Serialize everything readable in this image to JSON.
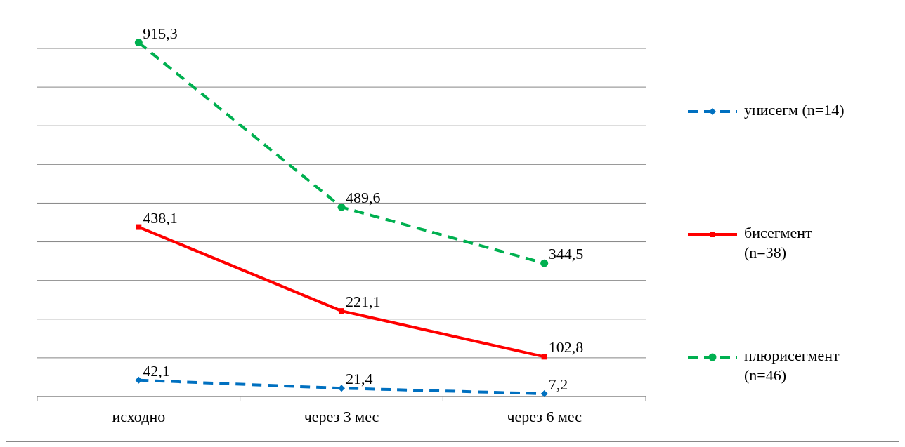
{
  "chart_data": {
    "type": "line",
    "categories": [
      "исходно",
      "через 3 мес",
      "через 6 мес"
    ],
    "series": [
      {
        "name": "унисегм (n=14)",
        "color": "#0070c0",
        "values": [
          42.1,
          21.4,
          7.2
        ],
        "value_labels": [
          "42,1",
          "21,4",
          "7,2"
        ],
        "marker": "diamond",
        "line_style": "dashed"
      },
      {
        "name": "бисегмент (n=38)",
        "color": "#ff0000",
        "values": [
          438.1,
          221.1,
          102.8
        ],
        "value_labels": [
          "438,1",
          "221,1",
          "102,8"
        ],
        "marker": "square",
        "line_style": "solid"
      },
      {
        "name": "плюрисегмент (n=46)",
        "color": "#00b050",
        "values": [
          915.3,
          489.6,
          344.5
        ],
        "value_labels": [
          "915,3",
          "489,6",
          "344,5"
        ],
        "marker": "circle",
        "line_style": "dashed"
      }
    ],
    "yticks": [
      {
        "value": 0,
        "label": null
      },
      {
        "value": 100,
        "label": null
      },
      {
        "value": 200,
        "label": null
      },
      {
        "value": 300,
        "label": null
      },
      {
        "value": 400,
        "label": null
      },
      {
        "value": 500,
        "label": null
      },
      {
        "value": 600,
        "label": null
      },
      {
        "value": 700,
        "label": null
      },
      {
        "value": 800,
        "label": null
      },
      {
        "value": 900,
        "label": null
      }
    ],
    "tick_labels": "x",
    "grid": "y",
    "legend": "right"
  }
}
